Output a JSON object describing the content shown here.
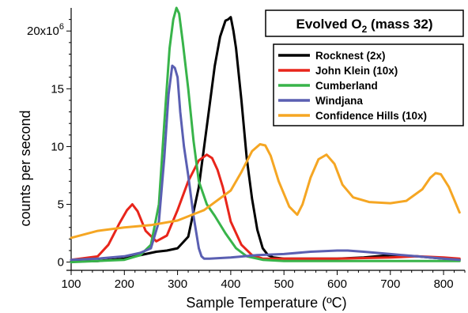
{
  "chart_data": {
    "type": "line",
    "title": "Evolved O",
    "title_subscript": "2",
    "title_suffix": " (mass 32)",
    "xlabel": "Sample Temperature (ºC)",
    "ylabel": "counts per second",
    "xlim": [
      100,
      840
    ],
    "ylim": [
      -0.3,
      22
    ],
    "x_ticks": [
      100,
      200,
      300,
      400,
      500,
      600,
      700,
      800
    ],
    "x_tick_labels": [
      "100",
      "200",
      "300",
      "400",
      "500",
      "600",
      "700",
      "800"
    ],
    "y_ticks": [
      0,
      5,
      10,
      15,
      20
    ],
    "y_tick_labels": [
      "0",
      "5",
      "10",
      "15",
      "20x10⁶"
    ],
    "grid": false,
    "legend_position": "top-right",
    "series": [
      {
        "name": "Rocknest (2x)",
        "color": "#000000",
        "x": [
          100,
          150,
          200,
          240,
          260,
          280,
          300,
          320,
          340,
          360,
          370,
          380,
          390,
          395,
          400,
          405,
          410,
          420,
          430,
          440,
          450,
          460,
          470,
          480,
          500,
          550,
          600,
          650,
          700,
          750,
          800,
          830
        ],
        "y": [
          0.05,
          0.1,
          0.3,
          0.7,
          0.9,
          1.0,
          1.2,
          2.2,
          6.5,
          13.5,
          17.0,
          19.5,
          20.9,
          21.0,
          21.2,
          20.0,
          18.5,
          14.0,
          9.0,
          5.5,
          2.8,
          1.2,
          0.6,
          0.4,
          0.3,
          0.3,
          0.3,
          0.4,
          0.6,
          0.5,
          0.3,
          0.2
        ]
      },
      {
        "name": "John Klein (10x)",
        "color": "#e8251b",
        "x": [
          100,
          150,
          170,
          190,
          205,
          215,
          225,
          240,
          260,
          280,
          300,
          320,
          340,
          355,
          365,
          375,
          385,
          400,
          420,
          440,
          460,
          500,
          550,
          600,
          650,
          700,
          750,
          800,
          830
        ],
        "y": [
          0.2,
          0.5,
          1.5,
          3.3,
          4.5,
          5.0,
          4.4,
          2.7,
          1.8,
          2.3,
          4.5,
          7.0,
          8.8,
          9.3,
          9.0,
          8.0,
          6.5,
          3.5,
          1.5,
          0.6,
          0.3,
          0.3,
          0.3,
          0.3,
          0.35,
          0.4,
          0.5,
          0.4,
          0.3
        ]
      },
      {
        "name": "Cumberland",
        "color": "#38b44a",
        "x": [
          100,
          200,
          230,
          250,
          265,
          275,
          285,
          292,
          298,
          303,
          310,
          320,
          330,
          340,
          355,
          370,
          390,
          410,
          430,
          460,
          500,
          550,
          600,
          650,
          700,
          750,
          800,
          830
        ],
        "y": [
          0.0,
          0.2,
          0.6,
          1.5,
          5.0,
          12.0,
          18.5,
          21.0,
          22.0,
          21.5,
          19.0,
          15.0,
          10.5,
          7.0,
          5.0,
          4.0,
          2.5,
          1.2,
          0.5,
          0.2,
          0.1,
          0.1,
          0.1,
          0.1,
          0.1,
          0.1,
          0.1,
          0.1
        ]
      },
      {
        "name": "Windjana",
        "color": "#5a5fb2",
        "x": [
          100,
          150,
          200,
          230,
          250,
          265,
          275,
          283,
          290,
          295,
          300,
          305,
          312,
          320,
          330,
          340,
          345,
          350,
          360,
          400,
          450,
          500,
          550,
          600,
          620,
          650,
          700,
          750,
          800,
          830
        ],
        "y": [
          0.2,
          0.3,
          0.5,
          0.8,
          1.2,
          3.5,
          9.0,
          14.5,
          17.0,
          16.8,
          16.0,
          13.0,
          10.0,
          7.5,
          4.0,
          1.2,
          0.5,
          0.3,
          0.3,
          0.4,
          0.6,
          0.7,
          0.9,
          1.0,
          1.0,
          0.9,
          0.7,
          0.5,
          0.3,
          0.2
        ]
      },
      {
        "name": "Confidence Hills (10x)",
        "color": "#f5a623",
        "x": [
          100,
          150,
          200,
          250,
          300,
          350,
          400,
          420,
          440,
          455,
          465,
          475,
          490,
          510,
          525,
          535,
          550,
          565,
          580,
          595,
          610,
          630,
          660,
          700,
          730,
          760,
          775,
          785,
          795,
          810,
          830
        ],
        "y": [
          2.1,
          2.7,
          3.0,
          3.2,
          3.6,
          4.5,
          6.2,
          7.8,
          9.6,
          10.2,
          10.1,
          9.2,
          7.0,
          4.8,
          4.1,
          5.0,
          7.3,
          8.9,
          9.3,
          8.5,
          6.7,
          5.6,
          5.2,
          5.1,
          5.3,
          6.3,
          7.3,
          7.7,
          7.6,
          6.5,
          4.3
        ]
      }
    ]
  }
}
